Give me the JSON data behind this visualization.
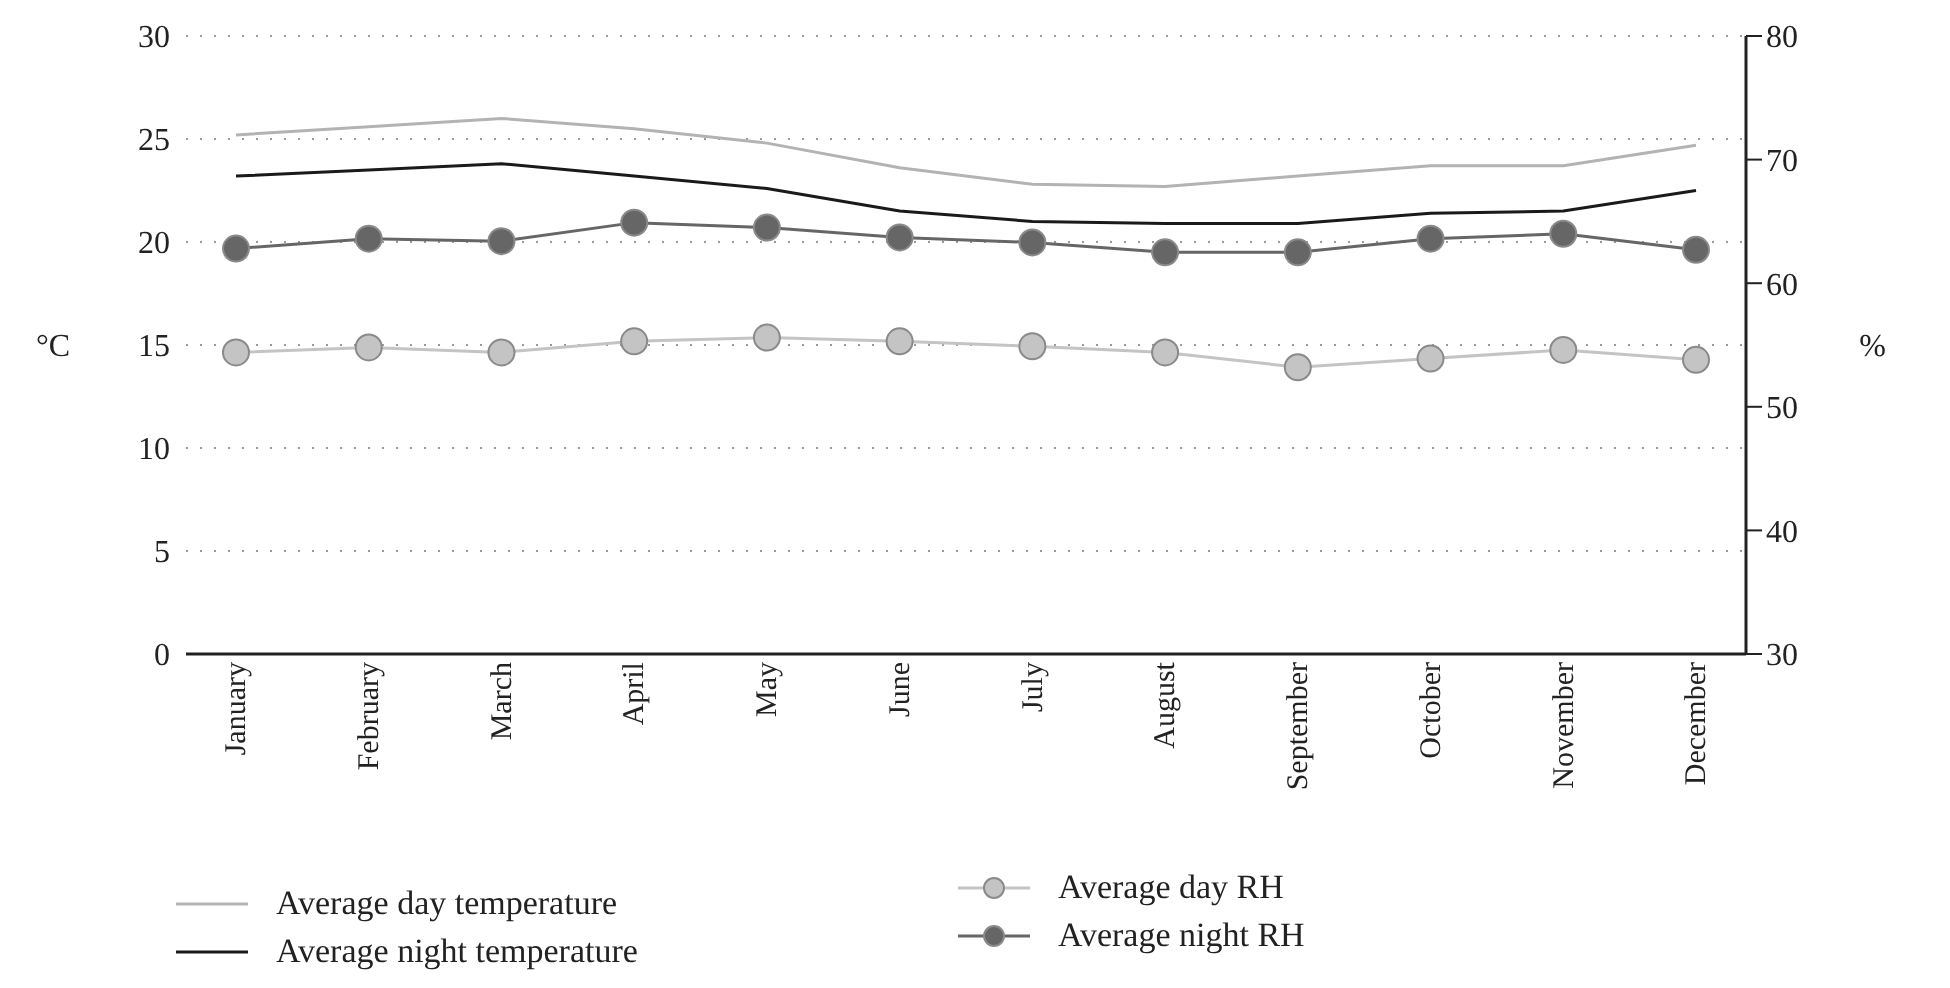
{
  "chart_data": {
    "type": "line",
    "ylabel": "°C",
    "y2label": "%",
    "categories": [
      "January",
      "February",
      "March",
      "April",
      "May",
      "June",
      "July",
      "August",
      "September",
      "October",
      "November",
      "December"
    ],
    "series": [
      {
        "name": "Average day temperature",
        "color": "#b3b3b3",
        "marker": "none",
        "values": [
          25.2,
          25.6,
          26.0,
          25.5,
          24.8,
          23.6,
          22.8,
          22.7,
          23.2,
          23.7,
          23.7,
          24.7
        ]
      },
      {
        "name": "Average night temperature",
        "color": "#1a1a1a",
        "marker": "none",
        "values": [
          23.2,
          23.5,
          23.8,
          23.2,
          22.6,
          21.5,
          21.0,
          20.9,
          20.9,
          21.4,
          21.5,
          22.5
        ]
      },
      {
        "name": "Average day RH",
        "color": "#c4c4c4",
        "marker": "circle",
        "axis": "y2",
        "values": [
          54.4,
          54.8,
          54.4,
          55.3,
          55.6,
          55.3,
          54.9,
          54.4,
          53.2,
          53.9,
          54.6,
          53.8
        ]
      },
      {
        "name": "Average night RH",
        "color": "#666666",
        "marker": "circle",
        "axis": "y2",
        "values": [
          62.8,
          63.6,
          63.4,
          64.9,
          64.5,
          63.7,
          63.3,
          62.5,
          62.5,
          63.6,
          64.0,
          62.7
        ]
      }
    ],
    "ylim": [
      0,
      30
    ],
    "yticks": [
      0,
      5,
      10,
      15,
      20,
      25,
      30
    ],
    "y2lim": [
      30,
      80
    ],
    "y2ticks": [
      30,
      40,
      50,
      60,
      70,
      80
    ],
    "grid": "y",
    "legend": "bottom"
  }
}
